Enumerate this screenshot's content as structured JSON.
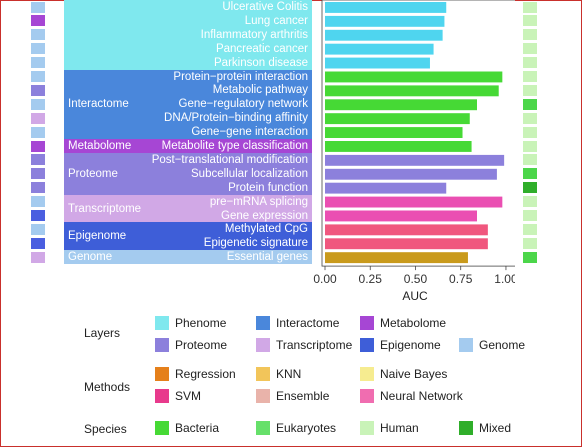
{
  "chart_data": {
    "type": "bar",
    "orientation": "horizontal",
    "xlabel": "AUC",
    "xlim": [
      0,
      1.05
    ],
    "xticks": [
      "0.00",
      "0.25",
      "0.50",
      "0.75",
      "1.00"
    ],
    "xtick_values": [
      0,
      0.25,
      0.5,
      0.75,
      1.0
    ],
    "layers": [
      {
        "name": "",
        "color": "#7fe8ee",
        "start": 0,
        "end": 4
      },
      {
        "name": "Interactome",
        "color": "#4a87db",
        "start": 5,
        "end": 9
      },
      {
        "name": "Metabolome",
        "color": "#a646d4",
        "start": 10,
        "end": 10
      },
      {
        "name": "Proteome",
        "color": "#8c80dc",
        "start": 11,
        "end": 13
      },
      {
        "name": "Transcriptome",
        "color": "#d1a8e6",
        "start": 14,
        "end": 15
      },
      {
        "name": "Epigenome",
        "color": "#3e5ed8",
        "start": 16,
        "end": 17
      },
      {
        "name": "Genome",
        "color": "#a4cbef",
        "start": 18,
        "end": 18
      }
    ],
    "categories": [
      "Ulcerative Colitis",
      "Lung cancer",
      "Inflammatory arthritis",
      "Pancreatic cancer",
      "Parkinson disease",
      "Protein−protein interaction",
      "Metabolic pathway",
      "Gene−regulatory network",
      "DNA/Protein−binding affinity",
      "Gene−gene interaction",
      "Metabolite type classification",
      "Post−translational modification",
      "Subcellular localization",
      "Protein function",
      "pre−mRNA splicing",
      "Gene expression",
      "Methylated CpG",
      "Epigenetic signature",
      "Essential genes"
    ],
    "values": [
      0.67,
      0.66,
      0.65,
      0.6,
      0.58,
      0.98,
      0.96,
      0.84,
      0.8,
      0.76,
      0.81,
      0.99,
      0.95,
      0.67,
      0.98,
      0.84,
      0.9,
      0.9,
      0.79
    ],
    "bar_colors": [
      "#4fd5ef",
      "#4fd5ef",
      "#4fd5ef",
      "#4fd5ef",
      "#4fd5ef",
      "#46d935",
      "#46d935",
      "#46d935",
      "#46d935",
      "#46d935",
      "#46d935",
      "#8c80dc",
      "#8c80dc",
      "#8c80dc",
      "#ea4fb2",
      "#ea4fb2",
      "#f0577e",
      "#f0577e",
      "#c99a1c"
    ],
    "left_strip_colors": [
      "#a4cbef",
      "#a646d4",
      "#a4cbef",
      "#a4cbef",
      "#a4cbef",
      "#a4cbef",
      "#8c80dc",
      "#a4cbef",
      "#d1a8e6",
      "#a4cbef",
      "#a646d4",
      "#8c80dc",
      "#8c80dc",
      "#8c80dc",
      "#a4cbef",
      "#4a5ee0",
      "#a4cbef",
      "#4a5ee0",
      "#d1a8e6"
    ],
    "right_strip_colors": [
      "#c9f3b8",
      "#c9f3b8",
      "#c9f3b8",
      "#c9f3b8",
      "#c9f3b8",
      "#c9f3b8",
      "#c9f3b8",
      "#4cd64a",
      "#c9f3b8",
      "#c9f3b8",
      "#c9f3b8",
      "#c9f3b8",
      "#4cd64a",
      "#2fae2a",
      "#c9f3b8",
      "#c9f3b8",
      "#c9f3b8",
      "#c9f3b8",
      "#4cd64a"
    ]
  },
  "legend": {
    "layers": {
      "title": "Layers",
      "items": [
        {
          "label": "Phenome",
          "color": "#7fe8ee"
        },
        {
          "label": "Interactome",
          "color": "#4a87db"
        },
        {
          "label": "Metabolome",
          "color": "#a646d4"
        },
        {
          "label": "Proteome",
          "color": "#8c80dc"
        },
        {
          "label": "Transcriptome",
          "color": "#d1a8e6"
        },
        {
          "label": "Epigenome",
          "color": "#3e5ed8"
        },
        {
          "label": "Genome",
          "color": "#a4cbef"
        }
      ]
    },
    "methods": {
      "title": "Methods",
      "items": [
        {
          "label": "Regression",
          "color": "#e5801b"
        },
        {
          "label": "KNN",
          "color": "#f2c55a"
        },
        {
          "label": "Naive Bayes",
          "color": "#f6ec90"
        },
        {
          "label": "SVM",
          "color": "#e83a8c"
        },
        {
          "label": "Ensemble",
          "color": "#e9b3aa"
        },
        {
          "label": "Neural Network",
          "color": "#f06db0"
        }
      ]
    },
    "species": {
      "title": "Species",
      "items": [
        {
          "label": "Bacteria",
          "color": "#46d935"
        },
        {
          "label": "Eukaryotes",
          "color": "#66e06a"
        },
        {
          "label": "Human",
          "color": "#c9f3b8"
        },
        {
          "label": "Mixed",
          "color": "#2fae2a"
        }
      ]
    }
  }
}
